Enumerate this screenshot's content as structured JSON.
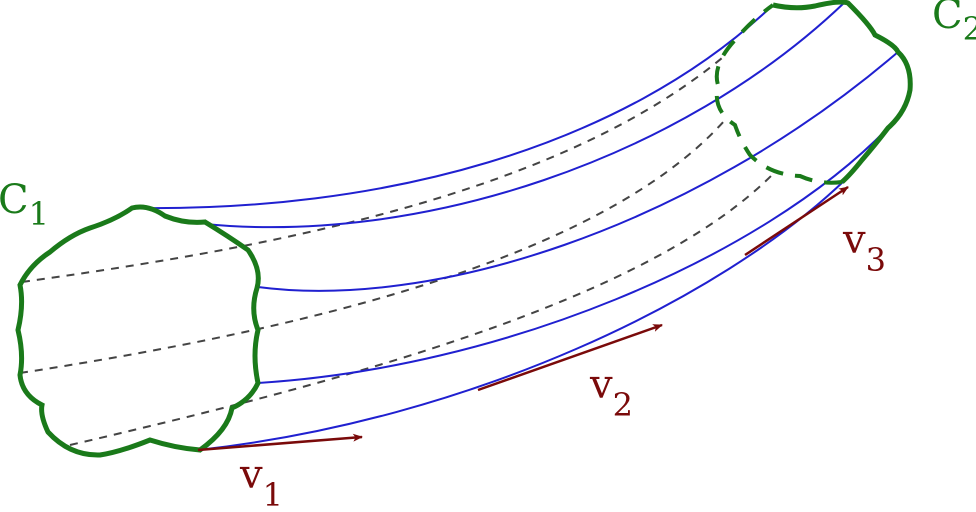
{
  "labels": {
    "c1": {
      "base": "C",
      "sub": "1"
    },
    "c2": {
      "base": "C",
      "sub": "2"
    },
    "v1": {
      "base": "v",
      "sub": "1"
    },
    "v2": {
      "base": "v",
      "sub": "2"
    },
    "v3": {
      "base": "v",
      "sub": "3"
    }
  },
  "colors": {
    "curve": "#1a7a1a",
    "field_line": "#2020d0",
    "hidden_line": "#444444",
    "vector": "#7a0a0a"
  }
}
